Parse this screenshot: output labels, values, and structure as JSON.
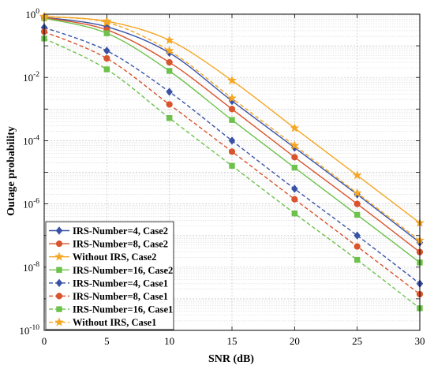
{
  "chart_data": {
    "type": "line",
    "xlabel": "SNR (dB)",
    "ylabel": "Outage probability",
    "xlim": [
      0,
      30
    ],
    "ylim": [
      1e-10,
      1
    ],
    "yscale": "log",
    "grid": true,
    "legend_position": "bottom-left",
    "x_ticks": [
      "0",
      "5",
      "10",
      "15",
      "20",
      "25",
      "30"
    ],
    "y_ticks": [
      {
        "base": "10",
        "exp": "0"
      },
      {
        "base": "10",
        "exp": "-2"
      },
      {
        "base": "10",
        "exp": "-4"
      },
      {
        "base": "10",
        "exp": "-6"
      },
      {
        "base": "10",
        "exp": "-8"
      },
      {
        "base": "10",
        "exp": "-10"
      }
    ],
    "x": [
      0,
      5,
      10,
      15,
      20,
      25,
      30
    ],
    "series": [
      {
        "name": "IRS-Number=4, Case2",
        "color": "#3a52a6",
        "dash": "solid",
        "marker": "diamond",
        "values": [
          0.8,
          0.4,
          0.06,
          0.0018,
          6e-05,
          2e-06,
          6e-08
        ]
      },
      {
        "name": "IRS-Number=8, Case2",
        "color": "#d9532c",
        "dash": "solid",
        "marker": "circle",
        "values": [
          0.78,
          0.32,
          0.03,
          0.001,
          3e-05,
          1e-06,
          3e-08
        ]
      },
      {
        "name": "Without IRS, Case2",
        "color": "#f5a623",
        "dash": "solid",
        "marker": "star",
        "values": [
          0.85,
          0.6,
          0.15,
          0.008,
          0.00025,
          8e-06,
          2.5e-07
        ]
      },
      {
        "name": "IRS-Number=16, Case2",
        "color": "#6cc24a",
        "dash": "solid",
        "marker": "square",
        "values": [
          0.75,
          0.25,
          0.016,
          0.00045,
          1.4e-05,
          4.5e-07,
          1.4e-08
        ]
      },
      {
        "name": "IRS-Number=4, Case1",
        "color": "#3a52a6",
        "dash": "dashed",
        "marker": "diamond",
        "values": [
          0.38,
          0.07,
          0.0035,
          0.0001,
          3e-06,
          1e-07,
          3e-09
        ]
      },
      {
        "name": "IRS-Number=8, Case1",
        "color": "#d9532c",
        "dash": "dashed",
        "marker": "circle",
        "values": [
          0.28,
          0.04,
          0.0014,
          4.5e-05,
          1.4e-06,
          4.5e-08,
          1.4e-09
        ]
      },
      {
        "name": "IRS-Number=16, Case1",
        "color": "#6cc24a",
        "dash": "dashed",
        "marker": "square",
        "values": [
          0.17,
          0.018,
          0.00052,
          1.6e-05,
          5e-07,
          1.7e-08,
          5e-10
        ]
      },
      {
        "name": "Without IRS, Case1",
        "color": "#f5a623",
        "dash": "dashed",
        "marker": "star",
        "values": [
          0.82,
          0.55,
          0.07,
          0.0022,
          7e-05,
          2.2e-06,
          7e-08
        ]
      }
    ]
  }
}
